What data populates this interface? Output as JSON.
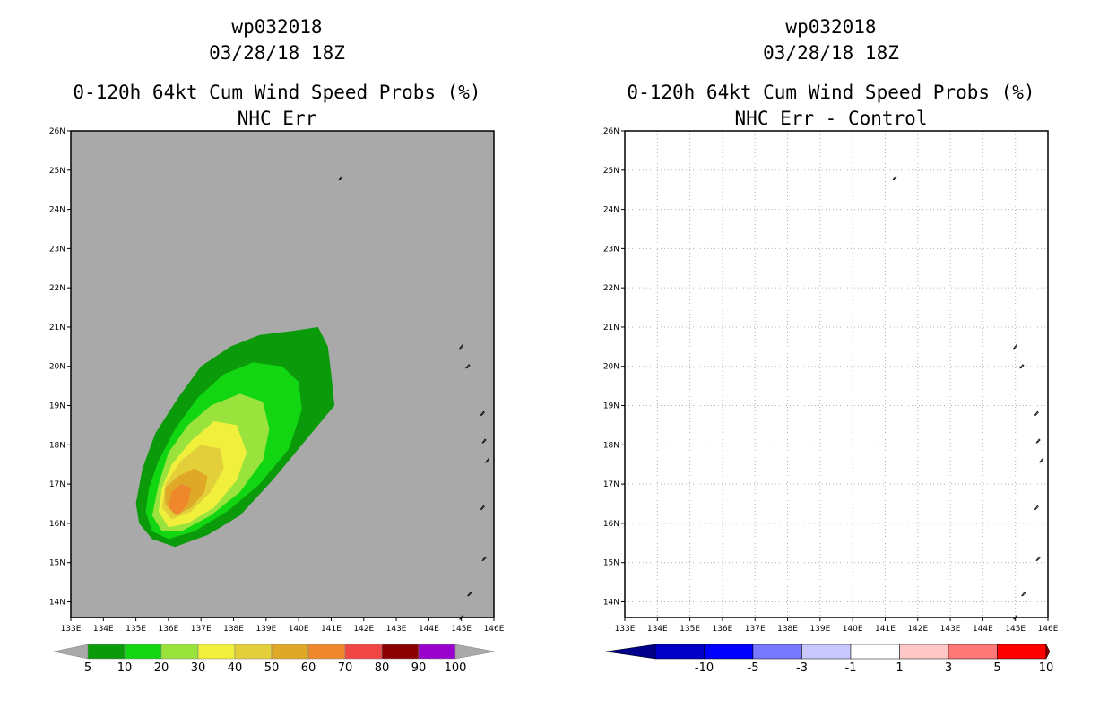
{
  "panels": [
    {
      "storm_id": "wp032018",
      "datetime": "03/28/18 18Z",
      "title": "0-120h 64kt Cum Wind Speed Probs (%)",
      "subtitle": "NHC Err"
    },
    {
      "storm_id": "wp032018",
      "datetime": "03/28/18 18Z",
      "title": "0-120h 64kt Cum Wind Speed Probs (%)",
      "subtitle": "NHC Err - Control"
    }
  ],
  "chart_data": [
    {
      "type": "contour-map",
      "title": "0-120h 64kt Cum Wind Speed Probs (%)",
      "subtitle": "NHC Err",
      "xlim": [
        133,
        146
      ],
      "ylim": [
        13.6,
        26
      ],
      "x_ticks": [
        "133E",
        "134E",
        "135E",
        "136E",
        "137E",
        "138E",
        "139E",
        "140E",
        "141E",
        "142E",
        "143E",
        "144E",
        "145E",
        "146E"
      ],
      "y_ticks": [
        "14N",
        "15N",
        "16N",
        "17N",
        "18N",
        "19N",
        "20N",
        "21N",
        "22N",
        "23N",
        "24N",
        "25N",
        "26N"
      ],
      "background": "#a9a9a9",
      "grid": false,
      "contour_levels": [
        {
          "label": "5-10",
          "color": "#0a9a0a",
          "polygon": [
            [
              135.0,
              16.5
            ],
            [
              135.1,
              16.0
            ],
            [
              135.5,
              15.6
            ],
            [
              136.2,
              15.4
            ],
            [
              137.2,
              15.7
            ],
            [
              138.2,
              16.2
            ],
            [
              139.2,
              17.1
            ],
            [
              140.2,
              18.1
            ],
            [
              141.1,
              19.0
            ],
            [
              141.0,
              19.8
            ],
            [
              140.9,
              20.5
            ],
            [
              140.6,
              21.0
            ],
            [
              139.8,
              20.9
            ],
            [
              138.8,
              20.8
            ],
            [
              137.9,
              20.5
            ],
            [
              137.0,
              20.0
            ],
            [
              136.3,
              19.2
            ],
            [
              135.6,
              18.3
            ],
            [
              135.2,
              17.4
            ]
          ]
        },
        {
          "label": "10-20",
          "color": "#11d611",
          "polygon": [
            [
              135.3,
              16.3
            ],
            [
              135.5,
              15.8
            ],
            [
              136.0,
              15.6
            ],
            [
              136.8,
              15.8
            ],
            [
              137.8,
              16.3
            ],
            [
              138.8,
              17.0
            ],
            [
              139.7,
              17.9
            ],
            [
              140.1,
              18.9
            ],
            [
              140.0,
              19.6
            ],
            [
              139.5,
              20.0
            ],
            [
              138.6,
              20.1
            ],
            [
              137.7,
              19.8
            ],
            [
              136.9,
              19.2
            ],
            [
              136.2,
              18.4
            ],
            [
              135.7,
              17.6
            ],
            [
              135.4,
              16.9
            ]
          ]
        },
        {
          "label": "20-30",
          "color": "#9ae33d",
          "polygon": [
            [
              135.5,
              16.2
            ],
            [
              135.8,
              15.8
            ],
            [
              136.4,
              15.8
            ],
            [
              137.3,
              16.2
            ],
            [
              138.2,
              16.8
            ],
            [
              138.9,
              17.6
            ],
            [
              139.1,
              18.4
            ],
            [
              138.9,
              19.1
            ],
            [
              138.2,
              19.3
            ],
            [
              137.3,
              19.0
            ],
            [
              136.6,
              18.5
            ],
            [
              136.0,
              17.8
            ],
            [
              135.7,
              17.0
            ]
          ]
        },
        {
          "label": "30-40",
          "color": "#f0f03c",
          "polygon": [
            [
              135.7,
              16.3
            ],
            [
              136.0,
              15.9
            ],
            [
              136.6,
              16.0
            ],
            [
              137.4,
              16.4
            ],
            [
              138.1,
              17.1
            ],
            [
              138.4,
              17.8
            ],
            [
              138.1,
              18.5
            ],
            [
              137.4,
              18.6
            ],
            [
              136.7,
              18.1
            ],
            [
              136.1,
              17.5
            ],
            [
              135.8,
              16.9
            ]
          ]
        },
        {
          "label": "40-50",
          "color": "#e3cf3a",
          "polygon": [
            [
              135.8,
              16.4
            ],
            [
              136.1,
              16.1
            ],
            [
              136.7,
              16.3
            ],
            [
              137.3,
              16.8
            ],
            [
              137.7,
              17.4
            ],
            [
              137.6,
              17.9
            ],
            [
              137.0,
              18.0
            ],
            [
              136.4,
              17.6
            ],
            [
              135.9,
              17.0
            ]
          ]
        },
        {
          "label": "50-60",
          "color": "#e0a827",
          "polygon": [
            [
              135.9,
              16.5
            ],
            [
              136.2,
              16.2
            ],
            [
              136.7,
              16.4
            ],
            [
              137.1,
              16.8
            ],
            [
              137.2,
              17.2
            ],
            [
              136.8,
              17.4
            ],
            [
              136.3,
              17.2
            ],
            [
              135.9,
              16.9
            ]
          ]
        },
        {
          "label": "60-70",
          "color": "#ef872d",
          "polygon": [
            [
              136.0,
              16.4
            ],
            [
              136.3,
              16.2
            ],
            [
              136.6,
              16.5
            ],
            [
              136.7,
              16.9
            ],
            [
              136.4,
              17.0
            ],
            [
              136.1,
              16.8
            ]
          ]
        }
      ],
      "colorbar": {
        "labels": [
          "5",
          "10",
          "20",
          "30",
          "40",
          "50",
          "60",
          "70",
          "80",
          "90",
          "100"
        ],
        "colors": [
          "#0a9a0a",
          "#11d611",
          "#9ae33d",
          "#f0f03c",
          "#e3cf3a",
          "#e0a827",
          "#ef872d",
          "#f04545",
          "#8b0000",
          "#9900cc"
        ],
        "end_color": "#a9a9a9"
      }
    },
    {
      "type": "contour-map",
      "title": "0-120h 64kt Cum Wind Speed Probs (%)",
      "subtitle": "NHC Err - Control",
      "xlim": [
        133,
        146
      ],
      "ylim": [
        13.6,
        26
      ],
      "x_ticks": [
        "133E",
        "134E",
        "135E",
        "136E",
        "137E",
        "138E",
        "139E",
        "140E",
        "141E",
        "142E",
        "143E",
        "144E",
        "145E",
        "146E"
      ],
      "y_ticks": [
        "14N",
        "15N",
        "16N",
        "17N",
        "18N",
        "19N",
        "20N",
        "21N",
        "22N",
        "23N",
        "24N",
        "25N",
        "26N"
      ],
      "background": "#ffffff",
      "grid": true,
      "contour_levels": [],
      "colorbar": {
        "labels": [
          "-10",
          "-5",
          "-3",
          "-1",
          "1",
          "3",
          "5",
          "10"
        ],
        "colors": [
          "#0000c8",
          "#0000ff",
          "#7878ff",
          "#c8c8ff",
          "#ffffff",
          "#ffc8c8",
          "#ff7878",
          "#ff0000"
        ],
        "end_left": "#00008b",
        "end_right": "#8b0000"
      }
    }
  ],
  "islands": [
    {
      "lon": 141.3,
      "lat": 24.8
    },
    {
      "lon": 145.0,
      "lat": 20.5
    },
    {
      "lon": 145.2,
      "lat": 20.0
    },
    {
      "lon": 145.65,
      "lat": 18.8
    },
    {
      "lon": 145.7,
      "lat": 18.1
    },
    {
      "lon": 145.8,
      "lat": 17.6
    },
    {
      "lon": 145.65,
      "lat": 16.4
    },
    {
      "lon": 145.7,
      "lat": 15.1
    },
    {
      "lon": 145.25,
      "lat": 14.2
    },
    {
      "lon": 145.0,
      "lat": 13.6
    }
  ]
}
